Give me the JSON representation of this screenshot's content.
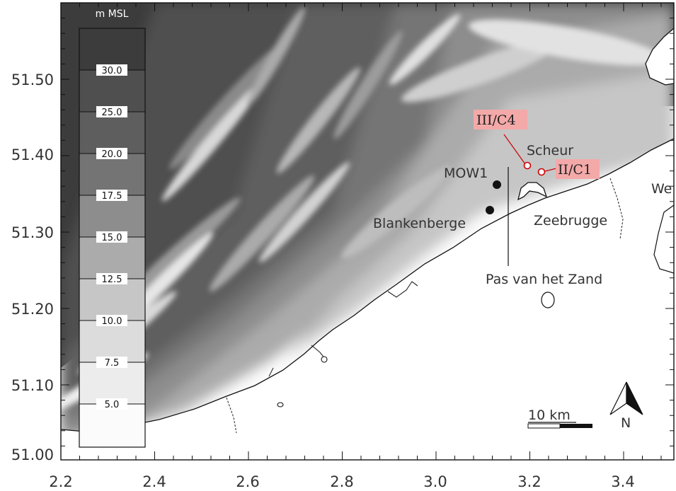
{
  "map": {
    "axes": {
      "x_ticks": [
        "2.2",
        "2.4",
        "2.6",
        "2.8",
        "3.0",
        "3.2",
        "3.4"
      ],
      "y_ticks": [
        "51.50",
        "51.40",
        "51.30",
        "51.20",
        "51.10",
        "51.00"
      ]
    },
    "legend": {
      "unit": "m MSL",
      "values": [
        "30.0",
        "25.0",
        "20.0",
        "17.5",
        "15.0",
        "12.5",
        "10.0",
        "7.5",
        "5.0"
      ]
    },
    "places": {
      "mow1": "MOW1",
      "blankenberge": "Blankenberge",
      "zeebrugge": "Zeebrugge",
      "scheur": "Scheur",
      "pas_van_het_zand": "Pas van het Zand",
      "we": "We"
    },
    "stations": {
      "c4": "III/C4",
      "c1": "II/C1"
    },
    "scale_bar": {
      "label": "10 km"
    },
    "north_arrow": {
      "label": "N"
    }
  }
}
